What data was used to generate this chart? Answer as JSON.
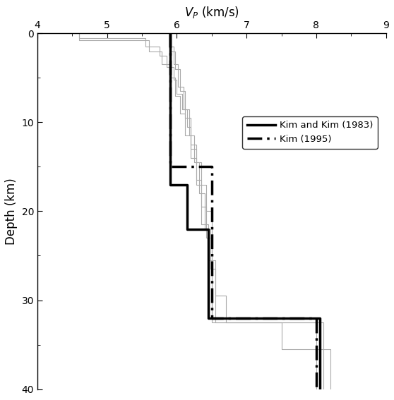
{
  "xlabel": "V_P (km/s)",
  "ylabel": "Depth (km)",
  "xlim": [
    4,
    9
  ],
  "ylim": [
    40,
    0
  ],
  "xticks": [
    4,
    5,
    6,
    7,
    8,
    9
  ],
  "yticks": [
    0,
    10,
    20,
    30,
    40
  ],
  "legend_labels": [
    "Kim and Kim (1983)",
    "Kim (1995)"
  ],
  "kim1983": {
    "vp": [
      5.9,
      5.9,
      6.15,
      6.15,
      6.45,
      6.45,
      8.05,
      8.05
    ],
    "depth": [
      0,
      17,
      17,
      22,
      22,
      32,
      32,
      40
    ]
  },
  "kim1995": {
    "vp": [
      5.9,
      5.9,
      6.5,
      6.5,
      8.0,
      8.0
    ],
    "depth": [
      0,
      15,
      15,
      32,
      32,
      40
    ]
  },
  "thin_model1": {
    "vp": [
      4.6,
      4.6,
      5.55,
      5.55,
      5.75,
      5.75,
      5.85,
      5.85,
      5.95,
      5.95,
      6.0,
      6.0,
      6.08,
      6.08,
      6.15,
      6.15,
      6.2,
      6.2,
      6.28,
      6.28,
      6.35,
      6.35,
      6.42,
      6.42,
      6.5,
      6.5,
      8.1,
      8.1
    ],
    "depth": [
      0,
      0.5,
      0.5,
      1.5,
      1.5,
      2.5,
      2.5,
      3.8,
      3.8,
      5.2,
      5.2,
      6.8,
      6.8,
      8.5,
      8.5,
      10.5,
      10.5,
      12.5,
      12.5,
      14.5,
      14.5,
      17.0,
      17.0,
      20.0,
      20.0,
      32.5,
      32.5,
      40
    ]
  },
  "thin_model2": {
    "vp": [
      4.6,
      4.6,
      5.6,
      5.6,
      5.78,
      5.78,
      5.9,
      5.9,
      5.98,
      5.98,
      6.05,
      6.05,
      6.12,
      6.12,
      6.2,
      6.2,
      6.28,
      6.28,
      6.35,
      6.35,
      6.42,
      6.42,
      6.5,
      6.5,
      8.05,
      8.05
    ],
    "depth": [
      0,
      0.8,
      0.8,
      2.0,
      2.0,
      3.5,
      3.5,
      5.0,
      5.0,
      7.0,
      7.0,
      9.0,
      9.0,
      11.5,
      11.5,
      14.0,
      14.0,
      16.5,
      16.5,
      19.5,
      19.5,
      23.0,
      23.0,
      32.0,
      32.0,
      40
    ]
  },
  "thin_model3": {
    "vp": [
      5.88,
      5.88,
      5.96,
      5.96,
      6.02,
      6.02,
      6.1,
      6.1,
      6.18,
      6.18,
      6.25,
      6.25,
      6.32,
      6.32,
      6.4,
      6.4,
      6.48,
      6.48,
      6.55,
      6.55,
      8.0,
      8.0
    ],
    "depth": [
      0,
      1.5,
      1.5,
      3.5,
      3.5,
      6.0,
      6.0,
      8.5,
      8.5,
      11.5,
      11.5,
      14.5,
      14.5,
      18.0,
      18.0,
      22.0,
      22.0,
      26.5,
      26.5,
      32.5,
      32.5,
      40
    ]
  },
  "thin_model4": {
    "vp": [
      5.9,
      5.9,
      5.98,
      5.98,
      6.05,
      6.05,
      6.12,
      6.12,
      6.2,
      6.2,
      6.28,
      6.28,
      6.35,
      6.35,
      6.45,
      6.45,
      6.55,
      6.55,
      6.7,
      6.7,
      7.5,
      7.5,
      8.2,
      8.2
    ],
    "depth": [
      0,
      2.0,
      2.0,
      4.0,
      4.0,
      6.5,
      6.5,
      9.5,
      9.5,
      13.0,
      13.0,
      17.0,
      17.0,
      21.5,
      21.5,
      25.5,
      25.5,
      29.5,
      29.5,
      32.5,
      32.5,
      35.5,
      35.5,
      40
    ]
  },
  "thin_color": "#aaaaaa",
  "thick_color": "#000000"
}
